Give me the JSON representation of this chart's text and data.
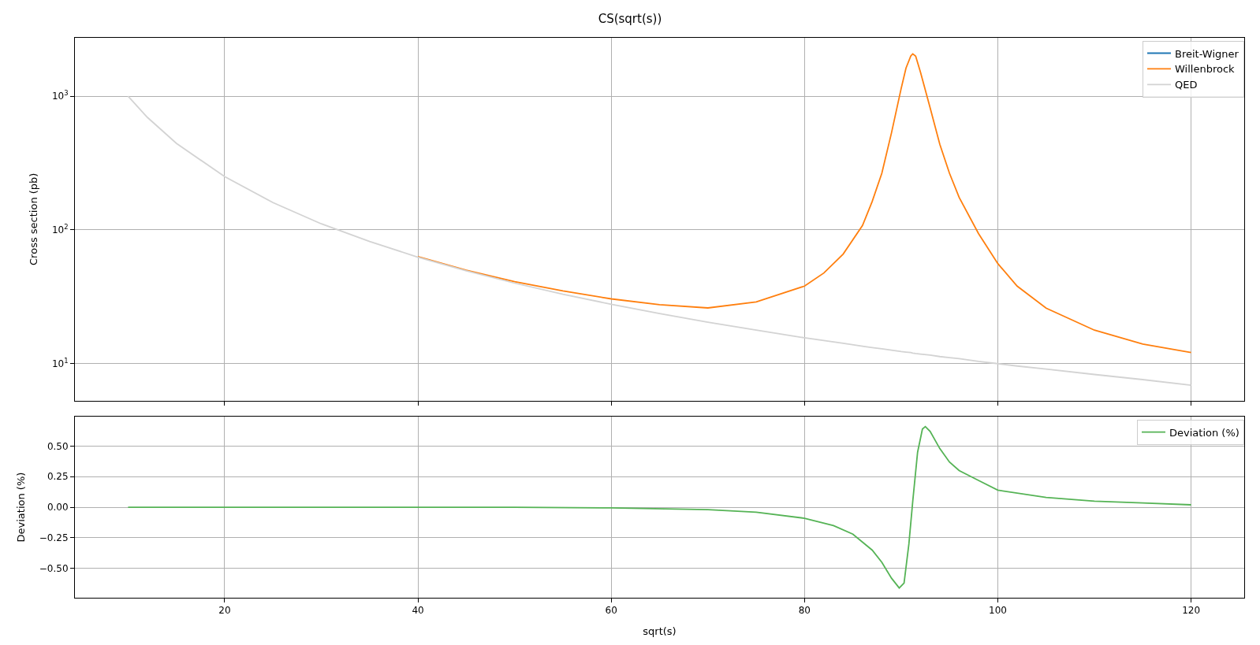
{
  "chart_data": [
    {
      "type": "line",
      "title": "CS(sqrt(s))",
      "ylabel": "Cross section (pb)",
      "log": "y",
      "grid": true,
      "legend": "top right",
      "tick_labels": "y",
      "line_style": "solid",
      "x": [
        10,
        12,
        15,
        20,
        25,
        30,
        35,
        40,
        45,
        50,
        55,
        60,
        65,
        70,
        75,
        80,
        82,
        84,
        86,
        87,
        88,
        89,
        90,
        90.5,
        91,
        91.2,
        91.5,
        92,
        93,
        94,
        95,
        96,
        98,
        100,
        102,
        105,
        110,
        115,
        120
      ],
      "xlim": [
        4.5,
        125.5
      ],
      "xticks": [
        20,
        40,
        60,
        80,
        100,
        120
      ],
      "ylim": [
        5.3,
        2730
      ],
      "yticks": [
        {
          "value": 10,
          "label": "10$^{1}$"
        },
        {
          "value": 100,
          "label": "10$^{2}$"
        },
        {
          "value": 1000,
          "label": "10$^{3}$"
        }
      ],
      "series": [
        {
          "name": "Breit-Wigner",
          "color": "#1f77b4",
          "values": [
            null,
            null,
            null,
            null,
            null,
            null,
            null,
            null,
            null,
            null,
            null,
            null,
            null,
            null,
            null,
            null,
            null,
            null,
            null,
            null,
            null,
            null,
            null,
            null,
            null,
            null,
            null,
            null,
            null,
            null,
            null,
            null,
            null,
            null,
            null,
            null,
            null,
            null,
            null
          ]
        },
        {
          "name": "Willenbrock",
          "color": "#ff7f0e",
          "values": [
            null,
            null,
            null,
            null,
            null,
            null,
            null,
            63,
            50,
            41,
            35,
            30.5,
            27.6,
            26.1,
            28.9,
            38,
            47.6,
            66,
            108,
            163,
            265,
            532,
            1140,
            1620,
            2000,
            2070,
            1990,
            1510,
            818,
            436,
            265,
            175,
            94,
            56,
            38,
            26,
            17.8,
            14,
            12.1
          ]
        },
        {
          "name": "QED",
          "color": "#d3d3d3",
          "values": [
            1000,
            694,
            444,
            250,
            160,
            111,
            82,
            62.5,
            49.4,
            40,
            33,
            27.8,
            23.7,
            20.4,
            17.8,
            15.6,
            14.9,
            14.2,
            13.5,
            13.2,
            12.9,
            12.6,
            12.3,
            12.2,
            12.1,
            12.0,
            11.9,
            11.8,
            11.6,
            11.3,
            11.1,
            10.9,
            10.4,
            10,
            9.6,
            9.1,
            8.3,
            7.6,
            6.9
          ]
        }
      ]
    },
    {
      "type": "line",
      "xlabel": "sqrt(s)",
      "ylabel": "Deviation (%)",
      "grid": true,
      "legend": "top right",
      "line_style": "solid",
      "x": [
        10,
        20,
        30,
        40,
        50,
        60,
        70,
        75,
        80,
        83,
        85,
        87,
        88,
        89,
        89.8,
        90.3,
        90.8,
        91.2,
        91.7,
        92.2,
        92.5,
        93,
        94,
        95,
        96,
        98,
        100,
        105,
        110,
        115,
        120
      ],
      "xlim": [
        4.5,
        125.5
      ],
      "xticks": [
        20,
        40,
        60,
        80,
        100,
        120
      ],
      "ylim": [
        -0.74,
        0.74
      ],
      "yticks": [
        {
          "value": -0.5,
          "label": "−0.50"
        },
        {
          "value": -0.25,
          "label": "−0.25"
        },
        {
          "value": 0,
          "label": "0.00"
        },
        {
          "value": 0.25,
          "label": "0.25"
        },
        {
          "value": 0.5,
          "label": "0.50"
        }
      ],
      "series": [
        {
          "name": "Deviation (%)",
          "color": "#55b355",
          "values": [
            0,
            0,
            0,
            0,
            0,
            -0.005,
            -0.02,
            -0.04,
            -0.09,
            -0.15,
            -0.22,
            -0.35,
            -0.45,
            -0.58,
            -0.66,
            -0.62,
            -0.3,
            0.05,
            0.45,
            0.64,
            0.66,
            0.62,
            0.48,
            0.37,
            0.3,
            0.22,
            0.14,
            0.08,
            0.05,
            0.035,
            0.02
          ]
        }
      ]
    }
  ]
}
